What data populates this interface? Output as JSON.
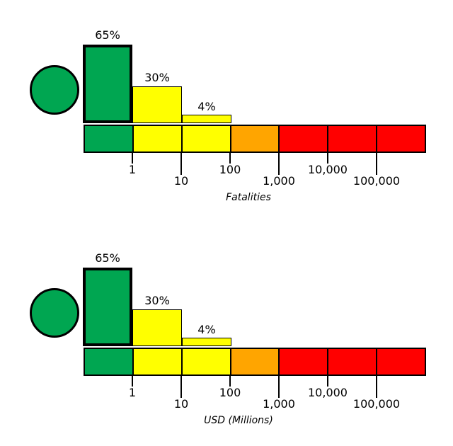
{
  "background": "#FFFFFF",
  "colors": {
    "green": "#00A651",
    "yellow": "#FFFF00",
    "orange": "#FFA500",
    "red": "#FF0000",
    "outline": "#000000"
  },
  "chart_data": [
    {
      "type": "bar",
      "xlabel": "Fatalities",
      "x_scale": "log",
      "x_tick_labels": [
        "1",
        "10",
        "100",
        "1,000",
        "10,000",
        "100,000"
      ],
      "indicator": {
        "shape": "circle",
        "color": "#00A651"
      },
      "bars": [
        {
          "label": "65%",
          "value": 65,
          "range": "below 1",
          "color": "#00A651",
          "highlighted": true
        },
        {
          "label": "30%",
          "value": 30,
          "range": "1-10",
          "color": "#FFFF00",
          "highlighted": false
        },
        {
          "label": "4%",
          "value": 4,
          "range": "10-100",
          "color": "#FFFF00",
          "highlighted": false
        }
      ],
      "scale_segments": [
        {
          "range": "below 1",
          "color": "#00A651"
        },
        {
          "range": "1-10",
          "color": "#FFFF00"
        },
        {
          "range": "10-100",
          "color": "#FFFF00"
        },
        {
          "range": "100-1,000",
          "color": "#FFA500"
        },
        {
          "range": "1,000-10,000",
          "color": "#FF0000"
        },
        {
          "range": "10,000-100,000",
          "color": "#FF0000"
        },
        {
          "range": "above 100,000",
          "color": "#FF0000"
        }
      ],
      "ticks": [
        {
          "label": "1"
        },
        {
          "label": "10"
        },
        {
          "label": "100"
        },
        {
          "label": "1,000"
        },
        {
          "label": "10,000"
        },
        {
          "label": "100,000"
        }
      ]
    },
    {
      "type": "bar",
      "xlabel": "USD (Millions)",
      "x_scale": "log",
      "x_tick_labels": [
        "1",
        "10",
        "100",
        "1,000",
        "10,000",
        "100,000"
      ],
      "indicator": {
        "shape": "circle",
        "color": "#00A651"
      },
      "bars": [
        {
          "label": "65%",
          "value": 65,
          "range": "below 1",
          "color": "#00A651",
          "highlighted": true
        },
        {
          "label": "30%",
          "value": 30,
          "range": "1-10",
          "color": "#FFFF00",
          "highlighted": false
        },
        {
          "label": "4%",
          "value": 4,
          "range": "10-100",
          "color": "#FFFF00",
          "highlighted": false
        }
      ],
      "scale_segments": [
        {
          "range": "below 1",
          "color": "#00A651"
        },
        {
          "range": "1-10",
          "color": "#FFFF00"
        },
        {
          "range": "10-100",
          "color": "#FFFF00"
        },
        {
          "range": "100-1,000",
          "color": "#FFA500"
        },
        {
          "range": "1,000-10,000",
          "color": "#FF0000"
        },
        {
          "range": "10,000-100,000",
          "color": "#FF0000"
        },
        {
          "range": "above 100,000",
          "color": "#FF0000"
        }
      ],
      "ticks": [
        {
          "label": "1"
        },
        {
          "label": "10"
        },
        {
          "label": "100"
        },
        {
          "label": "1,000"
        },
        {
          "label": "10,000"
        },
        {
          "label": "100,000"
        }
      ]
    }
  ]
}
